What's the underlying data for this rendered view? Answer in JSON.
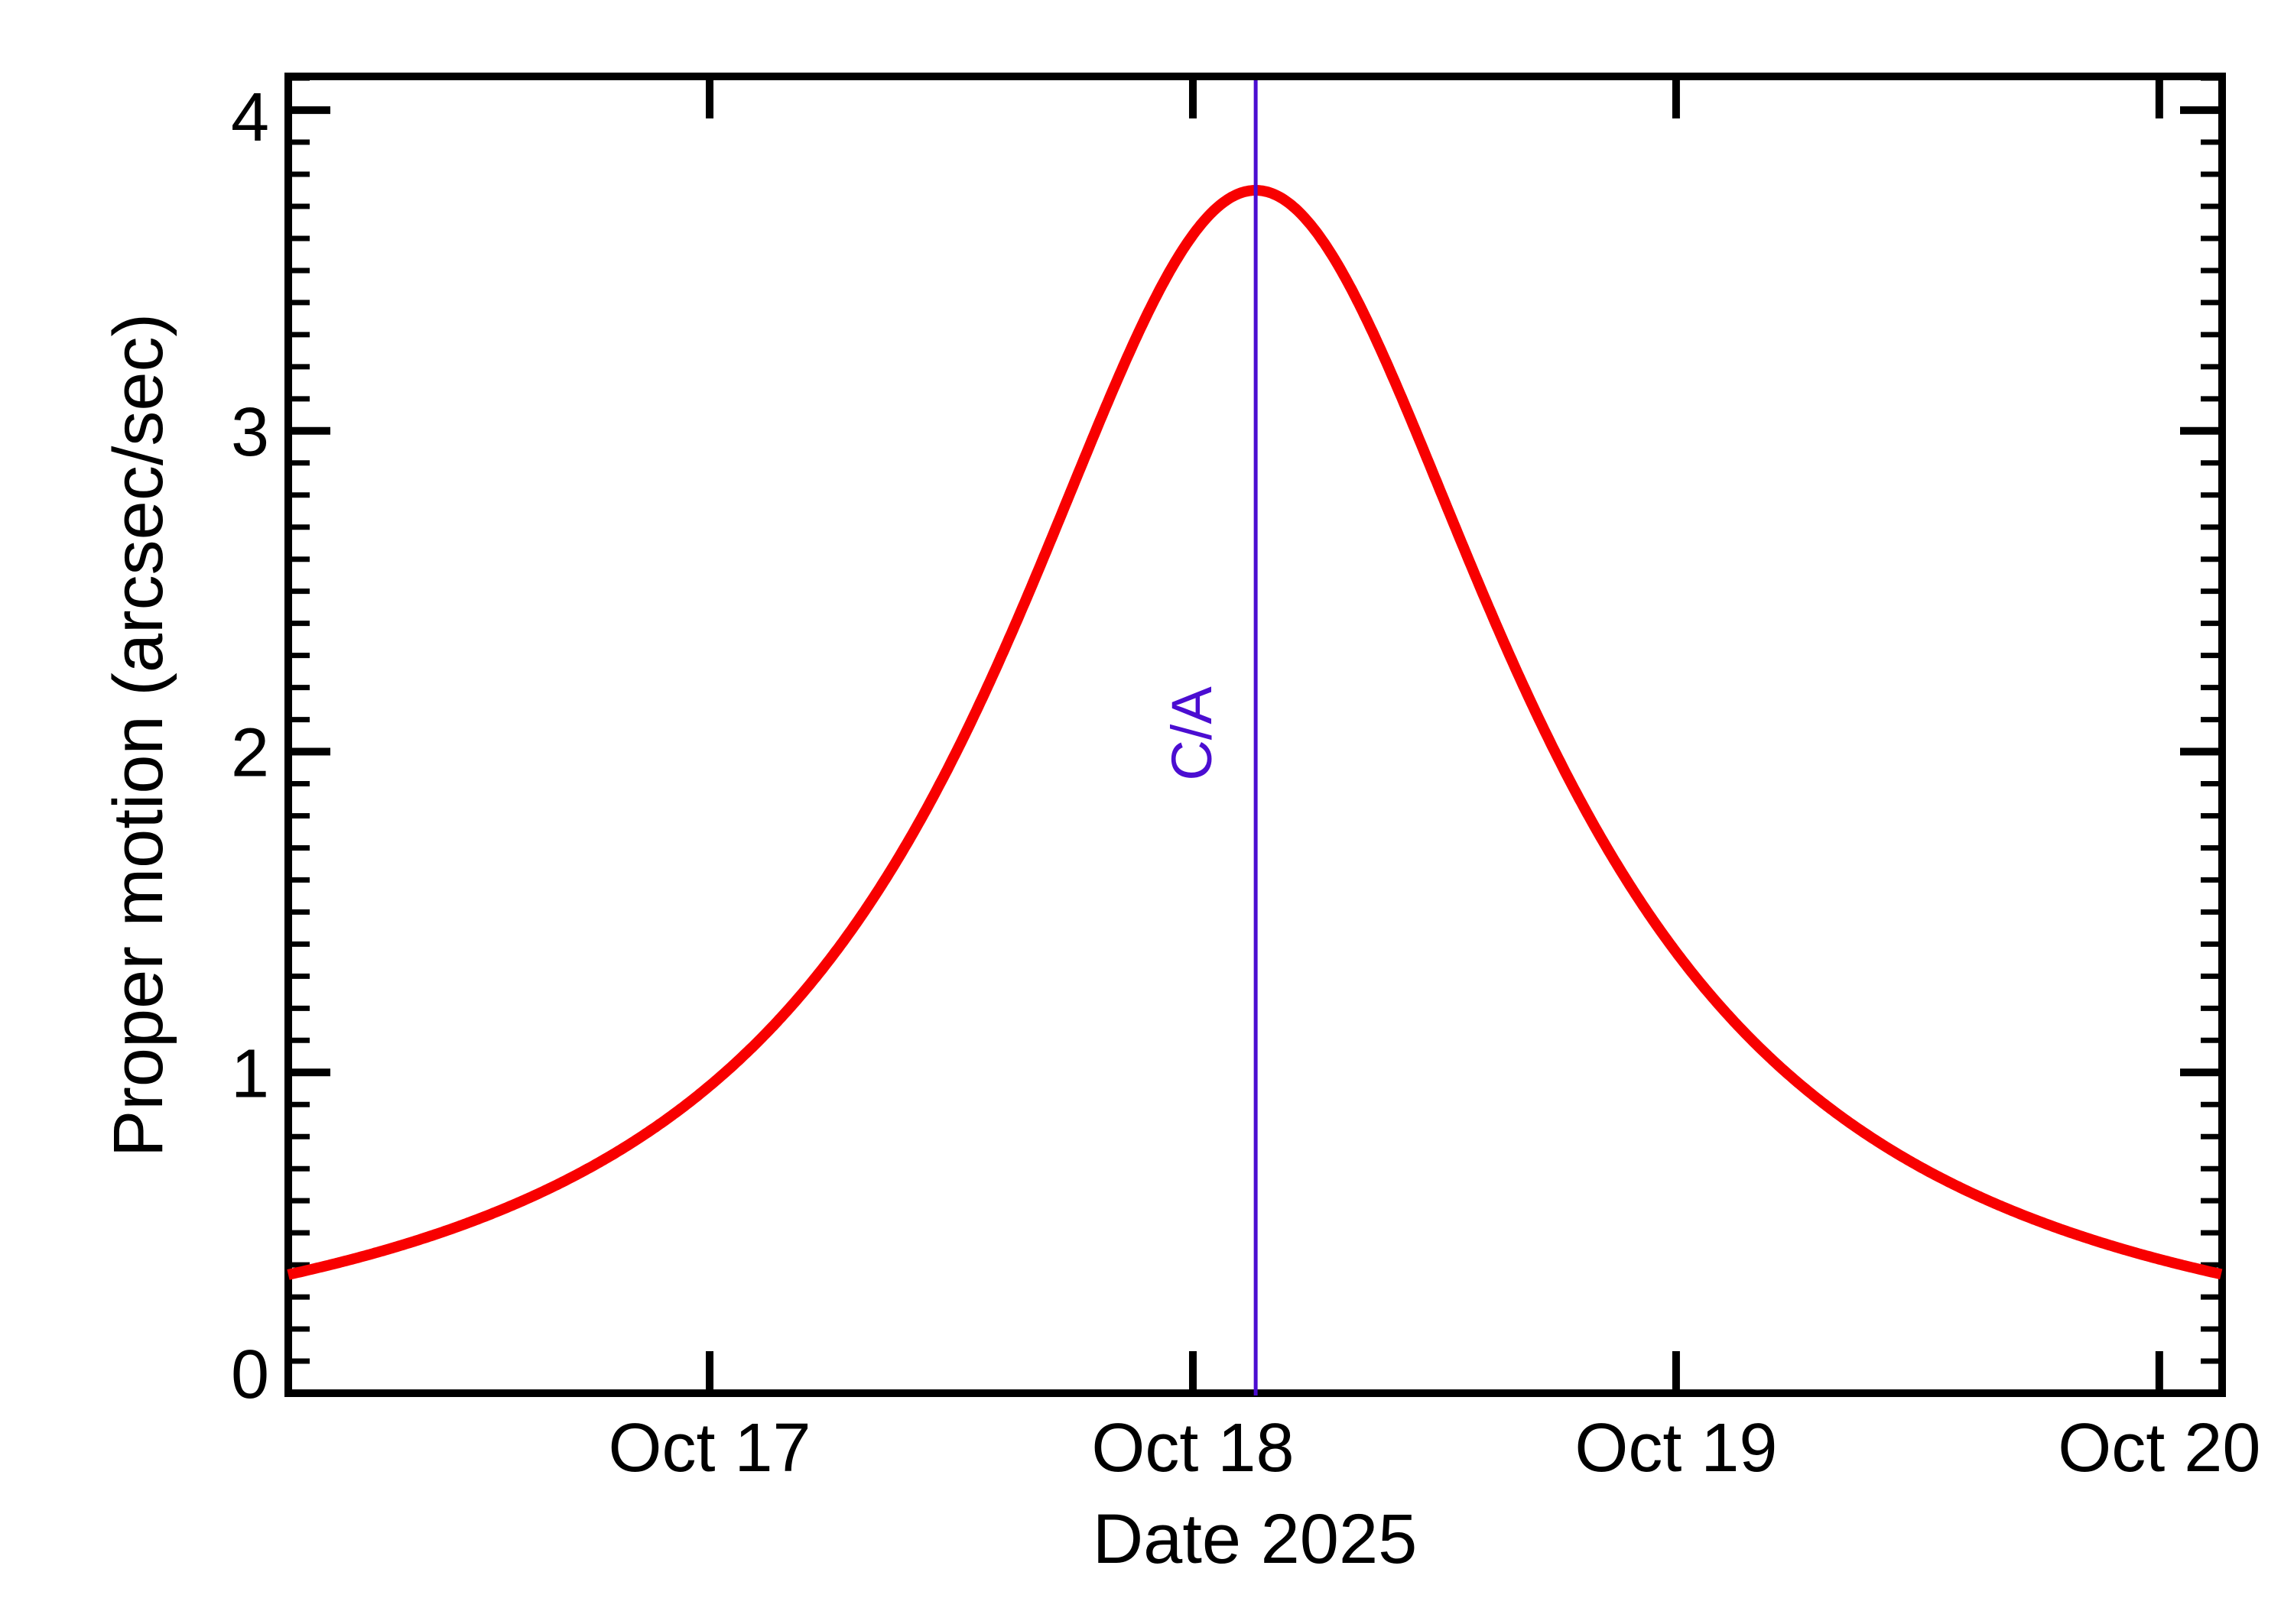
{
  "style": {
    "background_color": "#ffffff",
    "axis_color": "#000000",
    "curve_color": "#f80000",
    "annotation_color": "#4b0dd1"
  },
  "chart_data": {
    "type": "line",
    "title": "",
    "xlabel": "Date 2025",
    "ylabel": "Proper motion (arcsec/sec)",
    "x_axis": {
      "unit": "days relative to Oct 18 2025 00:00",
      "range": [
        -1.872,
        2.13
      ],
      "major_ticks": [
        {
          "t": -1,
          "label": "Oct 17"
        },
        {
          "t": 0,
          "label": "Oct 18"
        },
        {
          "t": 1,
          "label": "Oct 19"
        },
        {
          "t": 2,
          "label": "Oct 20"
        }
      ],
      "minor_ticks": "none",
      "grid": "off"
    },
    "y_axis": {
      "range": [
        0,
        4.105
      ],
      "major_ticks": [
        {
          "v": 0,
          "label": "0"
        },
        {
          "v": 1,
          "label": "1"
        },
        {
          "v": 2,
          "label": "2"
        },
        {
          "v": 3,
          "label": "3"
        },
        {
          "v": 4,
          "label": "4"
        }
      ],
      "minor_tick_step": 0.1,
      "grid": "off"
    },
    "series": [
      {
        "name": "proper-motion",
        "color": "#f80000",
        "model": {
          "type": "lorentzian",
          "peak": 3.75,
          "center_t": 0.13,
          "hwhm_days": 0.662
        },
        "points": [
          [
            -1.87,
            0.37
          ],
          [
            -1.8,
            0.4
          ],
          [
            -1.6,
            0.48
          ],
          [
            -1.4,
            0.59
          ],
          [
            -1.2,
            0.74
          ],
          [
            -1.0,
            0.96
          ],
          [
            -0.8,
            1.26
          ],
          [
            -0.6,
            1.69
          ],
          [
            -0.4,
            2.29
          ],
          [
            -0.2,
            3.0
          ],
          [
            -0.1,
            3.35
          ],
          [
            0.0,
            3.61
          ],
          [
            0.13,
            3.75
          ],
          [
            0.3,
            3.52
          ],
          [
            0.4,
            3.22
          ],
          [
            0.6,
            2.49
          ],
          [
            0.8,
            1.85
          ],
          [
            1.0,
            1.38
          ],
          [
            1.2,
            1.04
          ],
          [
            1.4,
            0.8
          ],
          [
            1.6,
            0.63
          ],
          [
            1.8,
            0.51
          ],
          [
            2.0,
            0.42
          ],
          [
            2.13,
            0.37
          ]
        ]
      }
    ],
    "annotations": [
      {
        "type": "vline",
        "t": 0.13,
        "label": "C/A",
        "color": "#4b0dd1"
      }
    ],
    "legend": "none"
  }
}
